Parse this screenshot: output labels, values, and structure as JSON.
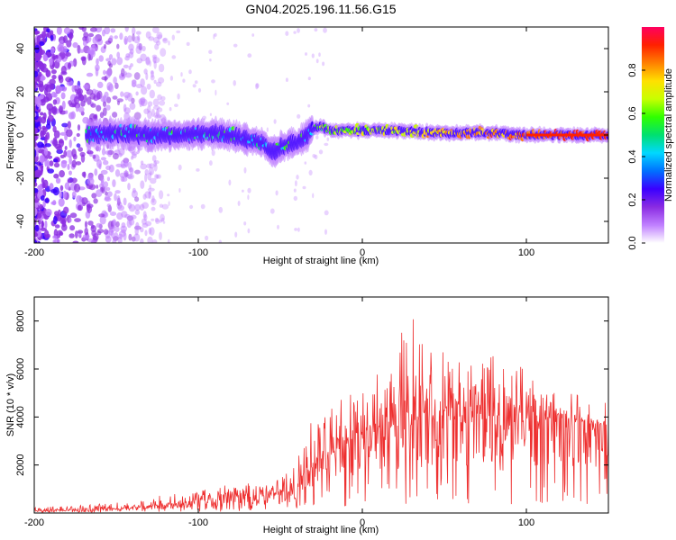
{
  "title": "GN04.2025.196.11.56.G15",
  "chart_data": [
    {
      "type": "heatmap",
      "xlabel": "Height of straight line (km)",
      "ylabel": "Frequency (Hz)",
      "xlim": [
        -200,
        150
      ],
      "ylim": [
        -50,
        50
      ],
      "xticks": [
        -200,
        -100,
        0,
        100
      ],
      "yticks": [
        -40,
        -20,
        0,
        20,
        40
      ],
      "colorbar": {
        "label": "Normalized spectral amplitude",
        "range": [
          0,
          1
        ],
        "ticks": [
          0.0,
          0.2,
          0.4,
          0.6,
          0.8
        ],
        "colormap": [
          "#ffffff",
          "#c080ff",
          "#8a2be2",
          "#3a00ff",
          "#0070ff",
          "#00d8ff",
          "#00e070",
          "#30ff00",
          "#c8ff00",
          "#ffe000",
          "#ff8000",
          "#ff2000",
          "#ff0060"
        ]
      },
      "dominant_frequency_trace": {
        "x": [
          -170,
          -150,
          -130,
          -110,
          -90,
          -70,
          -60,
          -55,
          -50,
          -45,
          -40,
          -35,
          -30,
          -25,
          -20,
          -10,
          0,
          20,
          50,
          80,
          100,
          120,
          150
        ],
        "y": [
          0,
          1,
          0,
          0,
          1,
          -2,
          -4,
          -8,
          -6,
          -4,
          -4,
          -1,
          3,
          4,
          2,
          2,
          2,
          2,
          1,
          1,
          0,
          0,
          0
        ]
      },
      "description_regions": [
        {
          "x_range": [
            -200,
            -130
          ],
          "character": "scattered noise across all frequencies"
        },
        {
          "x_range": [
            -165,
            -30
          ],
          "character": "broad trace near 0 Hz dipping to about -8 Hz near -52 km"
        },
        {
          "x_range": [
            -30,
            150
          ],
          "character": "narrow strong trace near 0 Hz, maximum amplitude above 100 km"
        }
      ]
    },
    {
      "type": "line",
      "xlabel": "Height of straight line (km)",
      "ylabel": "SNR (10 * v/v)",
      "xlim": [
        -200,
        150
      ],
      "ylim": [
        0,
        9000
      ],
      "xticks": [
        -200,
        -100,
        0,
        100
      ],
      "yticks": [
        2000,
        4000,
        6000,
        8000
      ],
      "color": "#ee3030",
      "envelope": {
        "x": [
          -200,
          -180,
          -160,
          -140,
          -120,
          -100,
          -80,
          -60,
          -50,
          -40,
          -30,
          -20,
          -10,
          0,
          10,
          20,
          30,
          40,
          60,
          80,
          100,
          110,
          120,
          130,
          150
        ],
        "mean": [
          100,
          100,
          120,
          180,
          300,
          450,
          550,
          600,
          700,
          1000,
          1800,
          2500,
          2600,
          3200,
          3400,
          3600,
          3700,
          3700,
          3700,
          3600,
          3400,
          3800,
          3900,
          3800,
          3600
        ],
        "max": [
          250,
          280,
          380,
          500,
          800,
          1000,
          1200,
          1300,
          1500,
          2400,
          4000,
          4600,
          4800,
          5900,
          6300,
          6900,
          8800,
          7200,
          7200,
          6800,
          6000,
          4900,
          4400,
          4100,
          3800
        ]
      }
    }
  ]
}
